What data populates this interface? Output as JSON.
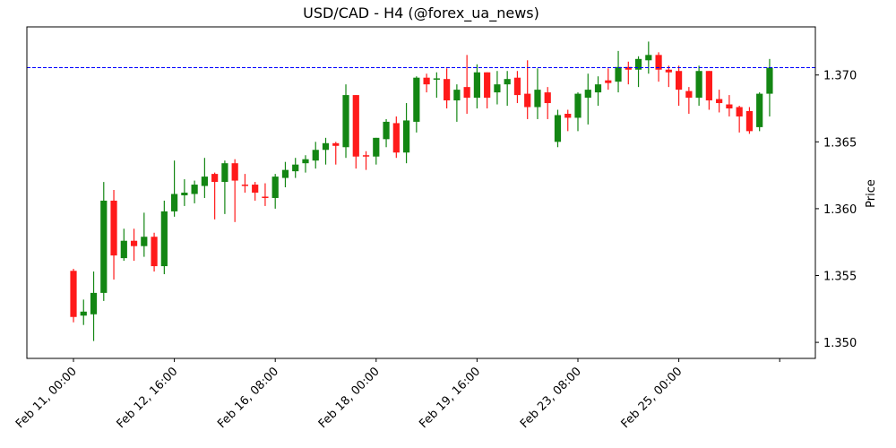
{
  "chart_data": {
    "type": "candlestick",
    "title": "USD/CAD - H4 (@forex_ua_news)",
    "xlabel": "",
    "ylabel": "Price",
    "ylim": [
      1.3488,
      1.3736
    ],
    "grid": false,
    "legend": null,
    "colors": {
      "up": "#138613",
      "down": "#ff1a1a",
      "reference_line": "#0000ff",
      "axis": "#000000"
    },
    "reference_line": {
      "value": 1.37055,
      "style": "dashed",
      "color": "#0000ff"
    },
    "yticks": [
      1.35,
      1.355,
      1.36,
      1.365,
      1.37
    ],
    "ytick_labels": [
      "1.350",
      "1.355",
      "1.360",
      "1.365",
      "1.370"
    ],
    "xticks": [
      {
        "index": 0,
        "label": "Feb 11, 00:00"
      },
      {
        "index": 10,
        "label": "Feb 12, 16:00"
      },
      {
        "index": 20,
        "label": "Feb 16, 08:00"
      },
      {
        "index": 30,
        "label": "Feb 18, 00:00"
      },
      {
        "index": 40,
        "label": "Feb 19, 16:00"
      },
      {
        "index": 50,
        "label": "Feb 23, 08:00"
      },
      {
        "index": 60,
        "label": "Feb 25, 00:00"
      },
      {
        "index": 70,
        "label": ""
      }
    ],
    "candles": [
      {
        "o": 1.35535,
        "h": 1.3555,
        "l": 1.3515,
        "c": 1.3519
      },
      {
        "o": 1.352,
        "h": 1.3532,
        "l": 1.3513,
        "c": 1.3523
      },
      {
        "o": 1.3521,
        "h": 1.3553,
        "l": 1.3501,
        "c": 1.3537
      },
      {
        "o": 1.3537,
        "h": 1.362,
        "l": 1.3531,
        "c": 1.3606
      },
      {
        "o": 1.3606,
        "h": 1.3614,
        "l": 1.3547,
        "c": 1.3565
      },
      {
        "o": 1.3563,
        "h": 1.3585,
        "l": 1.3561,
        "c": 1.3576
      },
      {
        "o": 1.3576,
        "h": 1.3585,
        "l": 1.3561,
        "c": 1.3572
      },
      {
        "o": 1.3572,
        "h": 1.3597,
        "l": 1.3564,
        "c": 1.3579
      },
      {
        "o": 1.3579,
        "h": 1.3582,
        "l": 1.3553,
        "c": 1.3557
      },
      {
        "o": 1.3557,
        "h": 1.3606,
        "l": 1.3551,
        "c": 1.3598
      },
      {
        "o": 1.3598,
        "h": 1.3636,
        "l": 1.3594,
        "c": 1.3611
      },
      {
        "o": 1.361,
        "h": 1.3622,
        "l": 1.3602,
        "c": 1.3612
      },
      {
        "o": 1.3611,
        "h": 1.3621,
        "l": 1.3604,
        "c": 1.3618
      },
      {
        "o": 1.3617,
        "h": 1.3638,
        "l": 1.3608,
        "c": 1.3624
      },
      {
        "o": 1.3626,
        "h": 1.3627,
        "l": 1.3592,
        "c": 1.362
      },
      {
        "o": 1.362,
        "h": 1.3636,
        "l": 1.3596,
        "c": 1.3634
      },
      {
        "o": 1.3634,
        "h": 1.3637,
        "l": 1.359,
        "c": 1.3621
      },
      {
        "o": 1.3618,
        "h": 1.3626,
        "l": 1.3612,
        "c": 1.3617
      },
      {
        "o": 1.3618,
        "h": 1.362,
        "l": 1.3606,
        "c": 1.3612
      },
      {
        "o": 1.3609,
        "h": 1.3619,
        "l": 1.3602,
        "c": 1.3608
      },
      {
        "o": 1.3608,
        "h": 1.3626,
        "l": 1.36,
        "c": 1.3624
      },
      {
        "o": 1.3623,
        "h": 1.3635,
        "l": 1.3616,
        "c": 1.3629
      },
      {
        "o": 1.3628,
        "h": 1.3638,
        "l": 1.3623,
        "c": 1.3633
      },
      {
        "o": 1.3634,
        "h": 1.364,
        "l": 1.3627,
        "c": 1.3637
      },
      {
        "o": 1.3636,
        "h": 1.365,
        "l": 1.363,
        "c": 1.3644
      },
      {
        "o": 1.3644,
        "h": 1.3653,
        "l": 1.3633,
        "c": 1.3649
      },
      {
        "o": 1.3649,
        "h": 1.365,
        "l": 1.3633,
        "c": 1.3647
      },
      {
        "o": 1.3646,
        "h": 1.3693,
        "l": 1.3638,
        "c": 1.3685
      },
      {
        "o": 1.3685,
        "h": 1.3685,
        "l": 1.363,
        "c": 1.3639
      },
      {
        "o": 1.364,
        "h": 1.3643,
        "l": 1.3629,
        "c": 1.3639
      },
      {
        "o": 1.3639,
        "h": 1.3653,
        "l": 1.3633,
        "c": 1.3653
      },
      {
        "o": 1.3652,
        "h": 1.3667,
        "l": 1.3646,
        "c": 1.3665
      },
      {
        "o": 1.3664,
        "h": 1.3669,
        "l": 1.3638,
        "c": 1.3642
      },
      {
        "o": 1.3642,
        "h": 1.3679,
        "l": 1.3634,
        "c": 1.3666
      },
      {
        "o": 1.3665,
        "h": 1.3699,
        "l": 1.3657,
        "c": 1.3698
      },
      {
        "o": 1.3698,
        "h": 1.3701,
        "l": 1.3687,
        "c": 1.3693
      },
      {
        "o": 1.3697,
        "h": 1.3702,
        "l": 1.3683,
        "c": 1.36975
      },
      {
        "o": 1.3697,
        "h": 1.3705,
        "l": 1.3675,
        "c": 1.3681
      },
      {
        "o": 1.3681,
        "h": 1.3693,
        "l": 1.3665,
        "c": 1.3689
      },
      {
        "o": 1.3691,
        "h": 1.3715,
        "l": 1.3671,
        "c": 1.3683
      },
      {
        "o": 1.3683,
        "h": 1.3708,
        "l": 1.3675,
        "c": 1.3702
      },
      {
        "o": 1.3702,
        "h": 1.3702,
        "l": 1.3675,
        "c": 1.3683
      },
      {
        "o": 1.3687,
        "h": 1.3703,
        "l": 1.3678,
        "c": 1.3693
      },
      {
        "o": 1.3693,
        "h": 1.3703,
        "l": 1.3677,
        "c": 1.3697
      },
      {
        "o": 1.3698,
        "h": 1.3703,
        "l": 1.3679,
        "c": 1.3685
      },
      {
        "o": 1.3686,
        "h": 1.3711,
        "l": 1.3667,
        "c": 1.3676
      },
      {
        "o": 1.3676,
        "h": 1.3705,
        "l": 1.3667,
        "c": 1.3689
      },
      {
        "o": 1.3687,
        "h": 1.3691,
        "l": 1.3667,
        "c": 1.3679
      },
      {
        "o": 1.365,
        "h": 1.3674,
        "l": 1.3646,
        "c": 1.367
      },
      {
        "o": 1.3671,
        "h": 1.3674,
        "l": 1.3658,
        "c": 1.3668
      },
      {
        "o": 1.3668,
        "h": 1.3687,
        "l": 1.3658,
        "c": 1.3686
      },
      {
        "o": 1.3683,
        "h": 1.3701,
        "l": 1.3663,
        "c": 1.3689
      },
      {
        "o": 1.3687,
        "h": 1.3699,
        "l": 1.3677,
        "c": 1.3693
      },
      {
        "o": 1.3696,
        "h": 1.3705,
        "l": 1.3689,
        "c": 1.3694
      },
      {
        "o": 1.3695,
        "h": 1.3718,
        "l": 1.3687,
        "c": 1.3706
      },
      {
        "o": 1.3706,
        "h": 1.371,
        "l": 1.3693,
        "c": 1.3704
      },
      {
        "o": 1.3704,
        "h": 1.3714,
        "l": 1.3691,
        "c": 1.3712
      },
      {
        "o": 1.3711,
        "h": 1.3725,
        "l": 1.3701,
        "c": 1.3715
      },
      {
        "o": 1.3715,
        "h": 1.3717,
        "l": 1.3695,
        "c": 1.3704
      },
      {
        "o": 1.3704,
        "h": 1.3707,
        "l": 1.3691,
        "c": 1.3702
      },
      {
        "o": 1.3703,
        "h": 1.3707,
        "l": 1.3677,
        "c": 1.3689
      },
      {
        "o": 1.3688,
        "h": 1.3691,
        "l": 1.3671,
        "c": 1.3683
      },
      {
        "o": 1.3683,
        "h": 1.3707,
        "l": 1.3677,
        "c": 1.3703
      },
      {
        "o": 1.3703,
        "h": 1.3703,
        "l": 1.3674,
        "c": 1.3681
      },
      {
        "o": 1.3682,
        "h": 1.3689,
        "l": 1.3672,
        "c": 1.3679
      },
      {
        "o": 1.3678,
        "h": 1.3685,
        "l": 1.3669,
        "c": 1.3675
      },
      {
        "o": 1.3676,
        "h": 1.3677,
        "l": 1.3657,
        "c": 1.3669
      },
      {
        "o": 1.3673,
        "h": 1.3676,
        "l": 1.3656,
        "c": 1.3658
      },
      {
        "o": 1.3661,
        "h": 1.3687,
        "l": 1.3658,
        "c": 1.3686
      },
      {
        "o": 1.3686,
        "h": 1.3712,
        "l": 1.3669,
        "c": 1.37055
      }
    ]
  }
}
